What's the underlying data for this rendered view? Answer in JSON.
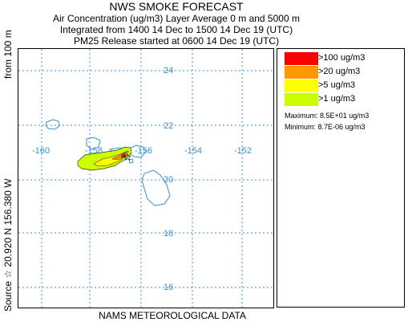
{
  "header": {
    "title": "NWS SMOKE FORECAST",
    "line1": "Air Concentration (ug/m3) Layer Average    0 m and  5000 m",
    "line2": "Integrated from 1400 14 Dec to 1500 14 Dec 19 (UTC)",
    "line3": "PM25 Release started at 0600 14 Dec 19 (UTC)"
  },
  "side_label": {
    "source": "Source ☆  20.920  N 156.380  W",
    "height": "from   100 m"
  },
  "footer": "NAMS METEOROLOGICAL DATA",
  "map": {
    "lat_ticks": [
      "24",
      "22",
      "20",
      "18",
      "16"
    ],
    "lon_ticks": [
      "-160",
      "-158",
      "-156",
      "-154",
      "-152"
    ],
    "coast_color": "#3a8fd0",
    "grid_color": "#3a8fd0",
    "source_marker": "star-icon"
  },
  "legend": {
    "items": [
      {
        "label": ">100 ug/m3",
        "color": "#ff0000"
      },
      {
        "label": ">20 ug/m3",
        "color": "#ff9900"
      },
      {
        "label": ">5 ug/m3",
        "color": "#ffff00"
      },
      {
        "label": ">1 ug/m3",
        "color": "#ccff00"
      }
    ],
    "maximum": "Maximum: 8.5E+01 ug/m3",
    "minimum": "Minimum: 8.7E-06 ug/m3"
  }
}
